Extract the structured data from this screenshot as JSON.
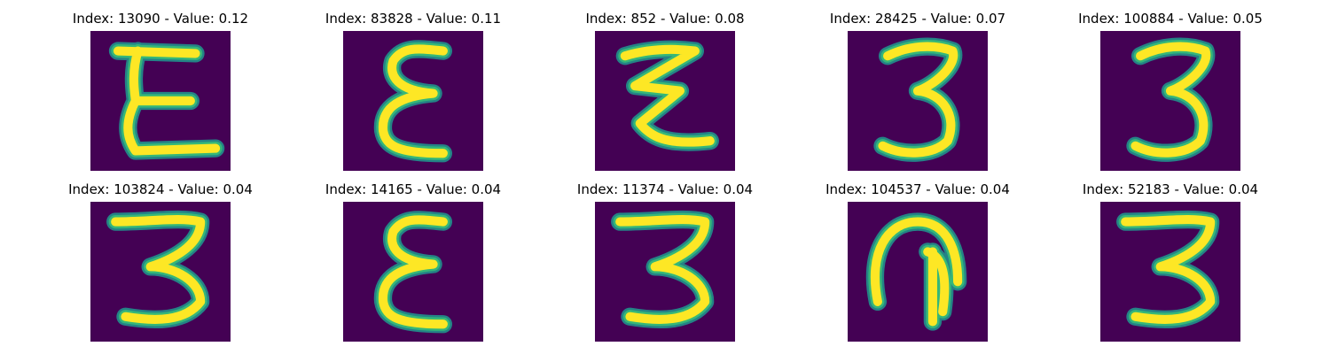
{
  "colors": {
    "background": "#440154",
    "stroke_core": "#fde725",
    "stroke_edge": "#35b779",
    "stroke_halo": "#21918c"
  },
  "panels": [
    {
      "index": "13090",
      "value": "0.12",
      "title": "Index: 13090 - Value: 0.12",
      "glyph": "E"
    },
    {
      "index": "83828",
      "value": "0.11",
      "title": "Index: 83828 - Value: 0.11",
      "glyph": "epsilon"
    },
    {
      "index": "852",
      "value": "0.08",
      "title": "Index: 852 - Value: 0.08",
      "glyph": "zigzag"
    },
    {
      "index": "28425",
      "value": "0.07",
      "title": "Index: 28425 - Value: 0.07",
      "glyph": "3"
    },
    {
      "index": "100884",
      "value": "0.05",
      "title": "Index: 100884 - Value: 0.05",
      "glyph": "3"
    },
    {
      "index": "103824",
      "value": "0.04",
      "title": "Index: 103824 - Value: 0.04",
      "glyph": "3-flat"
    },
    {
      "index": "14165",
      "value": "0.04",
      "title": "Index: 14165 - Value: 0.04",
      "glyph": "epsilon"
    },
    {
      "index": "11374",
      "value": "0.04",
      "title": "Index: 11374 - Value: 0.04",
      "glyph": "3-flat"
    },
    {
      "index": "104537",
      "value": "0.04",
      "title": "Index: 104537 - Value: 0.04",
      "glyph": "arch"
    },
    {
      "index": "52183",
      "value": "0.04",
      "title": "Index: 52183 - Value: 0.04",
      "glyph": "3-flat"
    }
  ]
}
